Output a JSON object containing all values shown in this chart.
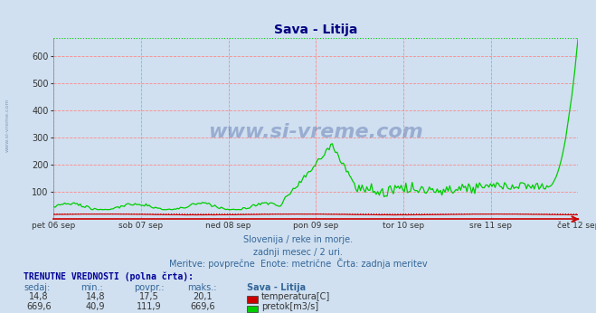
{
  "title": "Sava - Litija",
  "bg_color": "#d0e0f0",
  "plot_bg_color": "#d0e0f0",
  "title_color": "#000080",
  "grid_color": "#ff9999",
  "ylim": [
    0,
    669.6
  ],
  "yticks": [
    100,
    200,
    300,
    400,
    500,
    600
  ],
  "xlabel_days": [
    "pet 06 sep",
    "sob 07 sep",
    "ned 08 sep",
    "pon 09 sep",
    "tor 10 sep",
    "sre 11 sep",
    "čet 12 sep"
  ],
  "max_flow": 669.6,
  "max_temp": 20.1,
  "text_line1": "Slovenija / reke in morje.",
  "text_line2": "zadnji mesec / 2 uri.",
  "text_line3": "Meritve: povprečne  Enote: metrične  Črta: zadnja meritev",
  "label_trenutne": "TRENUTNE VREDNOSTI (polna črta):",
  "col_headers": [
    "sedaj:",
    "min.:",
    "povpr.:",
    "maks.:",
    "Sava - Litija"
  ],
  "temp_row": [
    "14,8",
    "14,8",
    "17,5",
    "20,1"
  ],
  "flow_row": [
    "669,6",
    "40,9",
    "111,9",
    "669,6"
  ],
  "temp_label": "temperatura[C]",
  "flow_label": "pretok[m3/s]",
  "temp_color": "#cc0000",
  "flow_color": "#00cc00",
  "watermark_text": "www.si-vreme.com",
  "side_text": "www.si-vreme.com",
  "n_points": 336
}
